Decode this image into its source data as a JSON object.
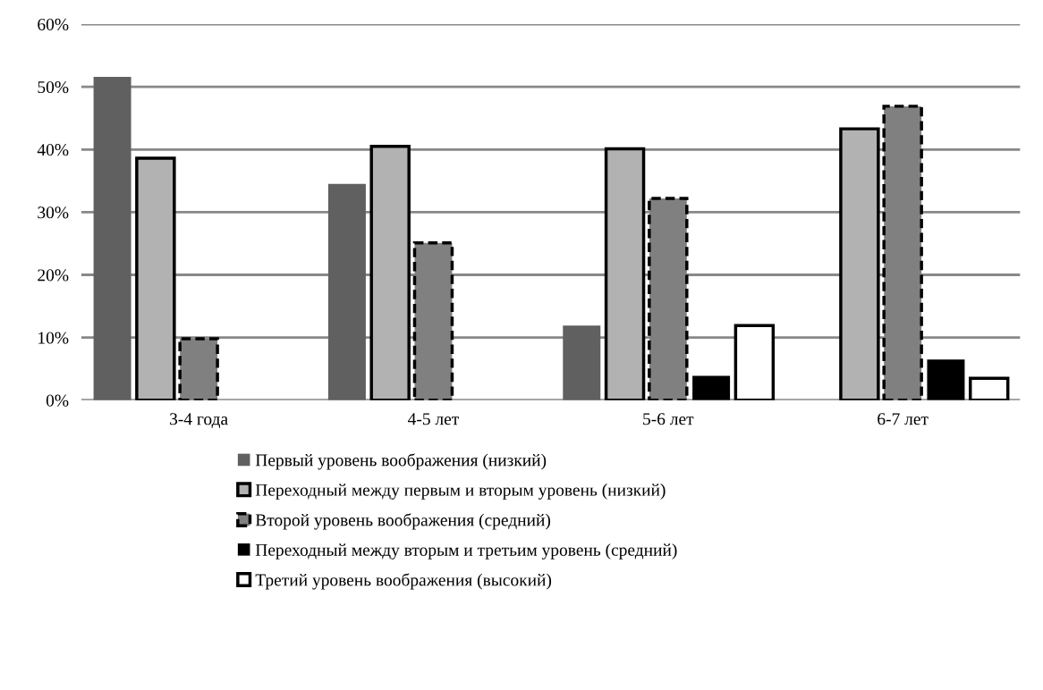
{
  "chart_data": {
    "type": "bar",
    "categories": [
      "3-4 года",
      "4-5 лет",
      "5-6 лет",
      "6-7 лет"
    ],
    "series": [
      {
        "name": "Первый уровень воображения (низкий)",
        "color": "#606060",
        "values": [
          51.6,
          34.5,
          11.9,
          null
        ]
      },
      {
        "name": "Переходный между первым и вторым уровень (низкий)",
        "color": "#b2b2b2",
        "line_style": "solid",
        "values": [
          38.6,
          40.5,
          40.1,
          43.3
        ]
      },
      {
        "name": "Второй уровень воображения (средний)",
        "color": "#808080",
        "line_style": "dashed",
        "values": [
          9.8,
          25.1,
          32.2,
          46.9
        ]
      },
      {
        "name": "Переходный между вторым и третьим уровень (средний)",
        "color": "#000000",
        "values": [
          null,
          null,
          3.9,
          6.5
        ]
      },
      {
        "name": "Третий уровень воображения (высокий)",
        "color": "#ffffff",
        "line_style": "solid",
        "values": [
          null,
          null,
          11.9,
          3.5
        ]
      }
    ],
    "ylim": [
      0,
      60
    ],
    "yticks": [
      {
        "value": 0,
        "label": "0%"
      },
      {
        "value": 10,
        "label": "10%"
      },
      {
        "value": 20,
        "label": "20%"
      },
      {
        "value": 30,
        "label": "30%"
      },
      {
        "value": 40,
        "label": "40%"
      },
      {
        "value": 50,
        "label": "50%"
      },
      {
        "value": 60,
        "label": "60%"
      }
    ],
    "grid": "y",
    "legend": "bottom"
  }
}
